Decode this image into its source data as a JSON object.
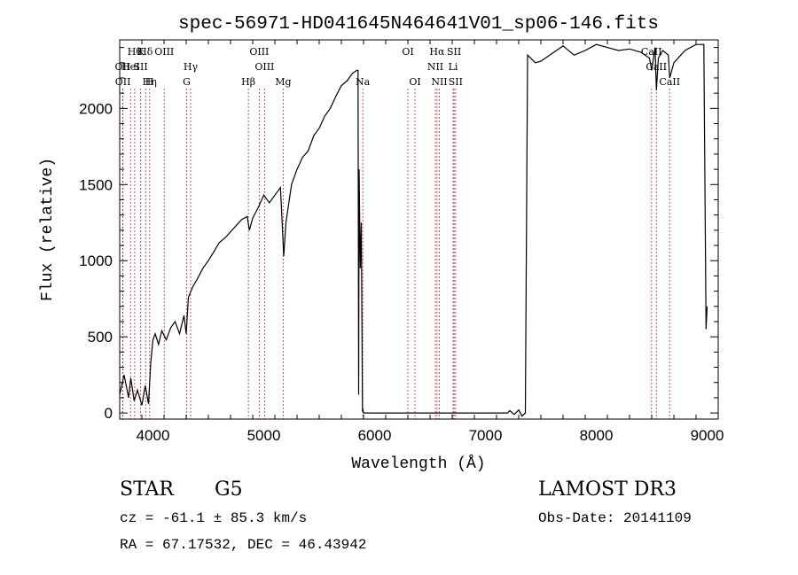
{
  "chart_data": {
    "type": "line",
    "title": "spec-56971-HD041645N464641V01_sp06-146.fits",
    "xlabel": "Wavelength (Å)",
    "ylabel": "Flux (relative)",
    "xlim": [
      3700,
      9100
    ],
    "ylim": [
      -40,
      2450
    ],
    "x_ticks": [
      4000,
      5000,
      6000,
      7000,
      8000,
      9000
    ],
    "y_ticks": [
      0,
      500,
      1000,
      1500,
      2000
    ],
    "grid": false,
    "series": [
      {
        "name": "flux",
        "points": [
          [
            3700,
            120
          ],
          [
            3740,
            250
          ],
          [
            3780,
            100
          ],
          [
            3800,
            230
          ],
          [
            3830,
            80
          ],
          [
            3860,
            150
          ],
          [
            3900,
            50
          ],
          [
            3930,
            180
          ],
          [
            3960,
            60
          ],
          [
            3980,
            330
          ],
          [
            4000,
            480
          ],
          [
            4020,
            520
          ],
          [
            4050,
            450
          ],
          [
            4080,
            540
          ],
          [
            4120,
            480
          ],
          [
            4160,
            560
          ],
          [
            4200,
            600
          ],
          [
            4240,
            520
          ],
          [
            4280,
            640
          ],
          [
            4300,
            520
          ],
          [
            4320,
            760
          ],
          [
            4360,
            830
          ],
          [
            4400,
            880
          ],
          [
            4450,
            950
          ],
          [
            4500,
            1000
          ],
          [
            4550,
            1060
          ],
          [
            4600,
            1120
          ],
          [
            4650,
            1150
          ],
          [
            4700,
            1190
          ],
          [
            4750,
            1230
          ],
          [
            4800,
            1270
          ],
          [
            4850,
            1290
          ],
          [
            4870,
            1200
          ],
          [
            4900,
            1280
          ],
          [
            4950,
            1350
          ],
          [
            5000,
            1430
          ],
          [
            5050,
            1380
          ],
          [
            5100,
            1430
          ],
          [
            5150,
            1480
          ],
          [
            5170,
            1180
          ],
          [
            5180,
            1030
          ],
          [
            5200,
            1250
          ],
          [
            5250,
            1500
          ],
          [
            5300,
            1600
          ],
          [
            5350,
            1680
          ],
          [
            5400,
            1720
          ],
          [
            5450,
            1820
          ],
          [
            5500,
            1870
          ],
          [
            5550,
            1950
          ],
          [
            5600,
            2000
          ],
          [
            5650,
            2080
          ],
          [
            5700,
            2150
          ],
          [
            5750,
            2180
          ],
          [
            5800,
            2230
          ],
          [
            5840,
            2250
          ],
          [
            5850,
            2250
          ],
          [
            5856,
            120
          ],
          [
            5860,
            1600
          ],
          [
            5870,
            950
          ],
          [
            5880,
            1250
          ],
          [
            5890,
            10
          ],
          [
            5895,
            20
          ],
          [
            5900,
            0
          ],
          [
            6000,
            0
          ],
          [
            7000,
            0
          ],
          [
            7200,
            0
          ],
          [
            7220,
            15
          ],
          [
            7260,
            -10
          ],
          [
            7300,
            20
          ],
          [
            7330,
            -20
          ],
          [
            7360,
            0
          ],
          [
            7380,
            2350
          ],
          [
            7450,
            2300
          ],
          [
            7500,
            2310
          ],
          [
            7600,
            2360
          ],
          [
            7700,
            2410
          ],
          [
            7800,
            2350
          ],
          [
            7900,
            2380
          ],
          [
            8000,
            2420
          ],
          [
            8100,
            2400
          ],
          [
            8200,
            2380
          ],
          [
            8300,
            2390
          ],
          [
            8400,
            2370
          ],
          [
            8480,
            2330
          ],
          [
            8500,
            2250
          ],
          [
            8530,
            2400
          ],
          [
            8542,
            2120
          ],
          [
            8560,
            2330
          ],
          [
            8600,
            2380
          ],
          [
            8650,
            2350
          ],
          [
            8662,
            2200
          ],
          [
            8700,
            2300
          ],
          [
            8800,
            2380
          ],
          [
            8900,
            2420
          ],
          [
            8970,
            2420
          ],
          [
            8990,
            550
          ],
          [
            9000,
            700
          ]
        ]
      }
    ],
    "line_marks": [
      {
        "w": 3835,
        "label": "Hθ",
        "row": 1
      },
      {
        "w": 3889,
        "label": "K",
        "row": 1
      },
      {
        "w": 3934,
        "label": "Hδ",
        "row": 1
      },
      {
        "w": 4102,
        "label": "OIII",
        "row": 1
      },
      {
        "w": 4959,
        "label": "OIII",
        "row": 1
      },
      {
        "w": 6300,
        "label": "OI",
        "row": 1
      },
      {
        "w": 6563,
        "label": "Hα",
        "row": 1
      },
      {
        "w": 6717,
        "label": "SII",
        "row": 1
      },
      {
        "w": 8498,
        "label": "CaII",
        "row": 1
      },
      {
        "w": 3727,
        "label": "OII",
        "row": 2
      },
      {
        "w": 3798,
        "label": "HeI",
        "row": 2
      },
      {
        "w": 3889,
        "label": "SII",
        "row": 2
      },
      {
        "w": 4340,
        "label": "Hγ",
        "row": 2
      },
      {
        "w": 5007,
        "label": "OIII",
        "row": 2
      },
      {
        "w": 6548,
        "label": "NII",
        "row": 2
      },
      {
        "w": 6708,
        "label": "Li",
        "row": 2
      },
      {
        "w": 8542,
        "label": "CaII",
        "row": 2
      },
      {
        "w": 3729,
        "label": "OII",
        "row": 3
      },
      {
        "w": 3970,
        "label": "Hη",
        "row": 3
      },
      {
        "w": 3968,
        "label": "H",
        "row": 3
      },
      {
        "w": 4304,
        "label": "G",
        "row": 3
      },
      {
        "w": 4861,
        "label": "Hβ",
        "row": 3
      },
      {
        "w": 5175,
        "label": "Mg",
        "row": 3
      },
      {
        "w": 5893,
        "label": "Na",
        "row": 3
      },
      {
        "w": 6364,
        "label": "OI",
        "row": 3
      },
      {
        "w": 6584,
        "label": "NII",
        "row": 3
      },
      {
        "w": 6731,
        "label": "SII",
        "row": 3
      },
      {
        "w": 8662,
        "label": "CaII",
        "row": 3
      }
    ]
  },
  "info": {
    "object_class": "STAR",
    "subclass": "G5",
    "survey": "LAMOST DR3",
    "cz": "cz = -61.1 ± 85.3 km/s",
    "obs_date": "Obs-Date: 20141109",
    "coords": "RA =  67.17532, DEC =  46.43942"
  },
  "colors": {
    "line_marker": "#c62828",
    "axes": "#000000",
    "spectrum": "#000000",
    "background": "#ffffff"
  }
}
